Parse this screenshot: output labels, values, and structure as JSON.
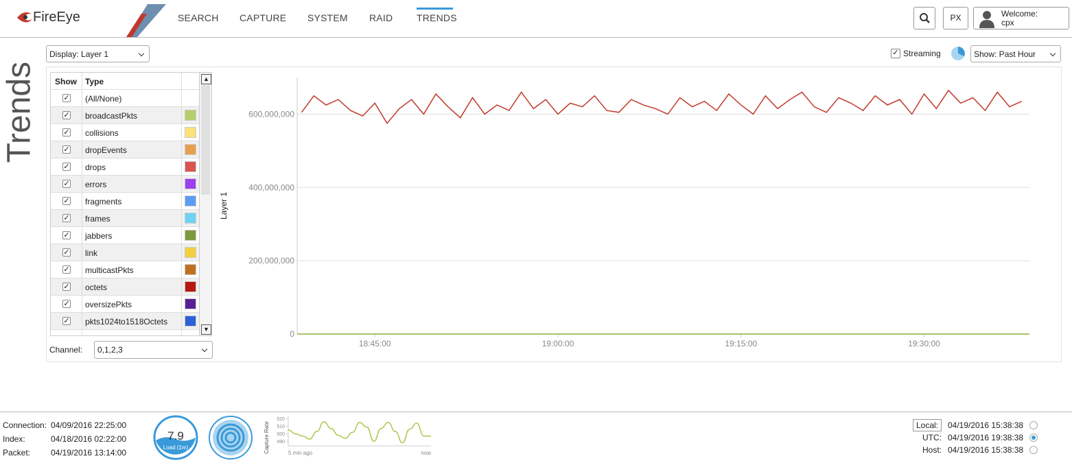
{
  "header": {
    "logo": "FireEye",
    "nav": [
      "SEARCH",
      "CAPTURE",
      "SYSTEM",
      "RAID",
      "TRENDS"
    ],
    "px_button": "PX",
    "welcome": "Welcome:",
    "user": "cpx"
  },
  "page_title": "Trends",
  "controls": {
    "display": "Display: Layer 1",
    "streaming": "Streaming",
    "range": "Show: Past Hour",
    "channel_label": "Channel:",
    "channel": "0,1,2,3"
  },
  "table": {
    "columns": [
      "Show",
      "Type"
    ],
    "rows": [
      {
        "type": "(All/None)",
        "checked": true
      },
      {
        "type": "broadcastPkts",
        "checked": true,
        "color": "#b5cf6b"
      },
      {
        "type": "collisions",
        "checked": true,
        "color": "#fde27a"
      },
      {
        "type": "dropEvents",
        "checked": true,
        "color": "#e8a04e"
      },
      {
        "type": "drops",
        "checked": true,
        "color": "#d9534f"
      },
      {
        "type": "errors",
        "checked": true,
        "color": "#9b3ff0"
      },
      {
        "type": "fragments",
        "checked": true,
        "color": "#5b9cf5"
      },
      {
        "type": "frames",
        "checked": true,
        "color": "#6dd3f2"
      },
      {
        "type": "jabbers",
        "checked": true,
        "color": "#7f9a3c"
      },
      {
        "type": "link",
        "checked": true,
        "color": "#f4cf3f"
      },
      {
        "type": "multicastPkts",
        "checked": true,
        "color": "#c0701f"
      },
      {
        "type": "octets",
        "checked": true,
        "color": "#b8180e"
      },
      {
        "type": "oversizePkts",
        "checked": true,
        "color": "#5a1f95"
      },
      {
        "type": "pkts1024to1518Octets",
        "checked": true,
        "color": "#2d60d8"
      }
    ]
  },
  "chart_data": [
    {
      "type": "line",
      "ylabel": "Layer 1",
      "grid": true,
      "xlim": [
        "18:38:38",
        "19:38:38"
      ],
      "xticks": [
        "18:45:00",
        "19:00:00",
        "19:15:00",
        "19:30:00"
      ],
      "ylim": [
        0,
        700000000
      ],
      "yticks": [
        0,
        {
          "value": 200000000,
          "label": "200,000,000"
        },
        {
          "value": 400000000,
          "label": "400,000,000"
        },
        {
          "value": 600000000,
          "label": "600,000,000"
        }
      ],
      "series": [
        {
          "color": "#c0392b",
          "x": [
            "18:39:00",
            "18:40:00",
            "18:41:00",
            "18:42:00",
            "18:43:00",
            "18:44:00",
            "18:45:00",
            "18:46:00",
            "18:47:00",
            "18:48:00",
            "18:49:00",
            "18:50:00",
            "18:51:00",
            "18:52:00",
            "18:53:00",
            "18:54:00",
            "18:55:00",
            "18:56:00",
            "18:57:00",
            "18:58:00",
            "18:59:00",
            "19:00:00",
            "19:01:00",
            "19:02:00",
            "19:03:00",
            "19:04:00",
            "19:05:00",
            "19:06:00",
            "19:07:00",
            "19:08:00",
            "19:09:00",
            "19:10:00",
            "19:11:00",
            "19:12:00",
            "19:13:00",
            "19:14:00",
            "19:15:00",
            "19:16:00",
            "19:17:00",
            "19:18:00",
            "19:19:00",
            "19:20:00",
            "19:21:00",
            "19:22:00",
            "19:23:00",
            "19:24:00",
            "19:25:00",
            "19:26:00",
            "19:27:00",
            "19:28:00",
            "19:29:00",
            "19:30:00",
            "19:31:00",
            "19:32:00",
            "19:33:00",
            "19:34:00",
            "19:35:00",
            "19:36:00",
            "19:37:00",
            "19:38:00"
          ],
          "values": [
            605000000,
            650000000,
            625000000,
            640000000,
            610000000,
            595000000,
            630000000,
            575000000,
            615000000,
            640000000,
            600000000,
            655000000,
            620000000,
            590000000,
            645000000,
            600000000,
            625000000,
            610000000,
            660000000,
            615000000,
            640000000,
            600000000,
            630000000,
            620000000,
            650000000,
            610000000,
            605000000,
            640000000,
            625000000,
            615000000,
            600000000,
            645000000,
            620000000,
            635000000,
            610000000,
            655000000,
            625000000,
            600000000,
            650000000,
            615000000,
            640000000,
            660000000,
            620000000,
            605000000,
            645000000,
            630000000,
            610000000,
            650000000,
            625000000,
            640000000,
            600000000,
            655000000,
            615000000,
            665000000,
            630000000,
            645000000,
            610000000,
            660000000,
            620000000,
            635000000
          ]
        },
        {
          "color": "#8ab03a",
          "x": [
            "18:38:38",
            "19:38:38"
          ],
          "values": [
            0,
            0
          ]
        }
      ]
    },
    {
      "type": "line",
      "title": "Capture Rate",
      "color": "#a9c94b",
      "categories": [
        "5 min ago",
        null,
        null,
        null,
        null,
        null,
        null,
        null,
        null,
        null,
        null,
        null,
        null,
        null,
        null,
        null,
        null,
        null,
        null,
        null,
        "now"
      ],
      "values": [
        505,
        500,
        497,
        493,
        503,
        516,
        507,
        498,
        494,
        502,
        515,
        509,
        490,
        507,
        515,
        503,
        488,
        506,
        514,
        497,
        497
      ],
      "ylim": [
        484,
        524
      ],
      "yticks": [
        490,
        500,
        510,
        520
      ]
    }
  ],
  "status": {
    "rows": [
      {
        "label": "Connection:",
        "value": "04/09/2016 22:25:00"
      },
      {
        "label": "Index:",
        "value": "04/18/2016 02:22:00"
      },
      {
        "label": "Packet:",
        "value": "04/19/2016 13:14:00"
      }
    ],
    "load": {
      "value": 7.9,
      "label": "Load (1m)"
    }
  },
  "clock": {
    "rows": [
      {
        "label": "Local:",
        "value": "04/19/2016 15:38:38",
        "selected": false
      },
      {
        "label": "UTC:",
        "value": "04/19/2016 19:38:38",
        "selected": true
      },
      {
        "label": "Host:",
        "value": "04/19/2016 15:38:38",
        "selected": false
      }
    ]
  }
}
